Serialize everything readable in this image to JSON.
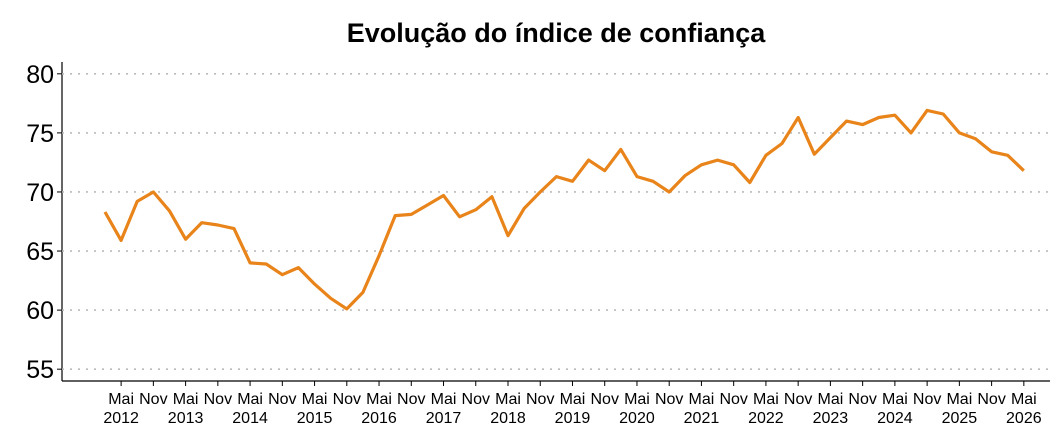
{
  "chart_data": {
    "type": "line",
    "title": "Evolução do índice de confiança",
    "categories": [
      null,
      "Mai 2012",
      null,
      "Nov",
      null,
      "Mai 2013",
      null,
      "Nov",
      null,
      "Mai 2014",
      null,
      "Nov",
      null,
      "Mai 2015",
      null,
      "Nov",
      null,
      "Mai 2016",
      null,
      "Nov",
      null,
      "Mai 2017",
      null,
      "Nov",
      null,
      "Mai 2018",
      null,
      "Nov",
      null,
      "Mai 2019",
      null,
      "Nov",
      null,
      "Mai 2020",
      null,
      "Nov",
      null,
      "Mai 2021",
      null,
      "Nov",
      null,
      "Mai 2022",
      null,
      "Nov",
      null,
      "Mai 2023",
      null,
      "Nov",
      null,
      "Mai 2024",
      null,
      "Nov",
      null,
      "Mai 2025",
      null,
      "Nov",
      null,
      "Mai 2026"
    ],
    "values": [
      68.3,
      65.9,
      69.2,
      70.0,
      68.4,
      66.0,
      67.4,
      67.2,
      66.9,
      64.0,
      63.9,
      63.0,
      63.6,
      62.2,
      61.0,
      60.1,
      61.5,
      64.6,
      68.0,
      68.1,
      68.9,
      69.7,
      67.9,
      68.5,
      69.6,
      66.3,
      68.6,
      70.0,
      71.3,
      70.9,
      72.7,
      71.8,
      73.6,
      71.3,
      70.9,
      70.0,
      71.4,
      72.3,
      72.7,
      72.3,
      70.8,
      73.1,
      74.1,
      76.3,
      73.2,
      74.6,
      76.0,
      75.7,
      76.3,
      76.5,
      75.0,
      76.9,
      76.6,
      75.0,
      74.5,
      73.4,
      73.1,
      71.8
    ],
    "color": "#e8841a",
    "ylim": [
      54,
      81
    ],
    "yticks": [
      55,
      60,
      65,
      70,
      75,
      80
    ],
    "grid": true
  }
}
